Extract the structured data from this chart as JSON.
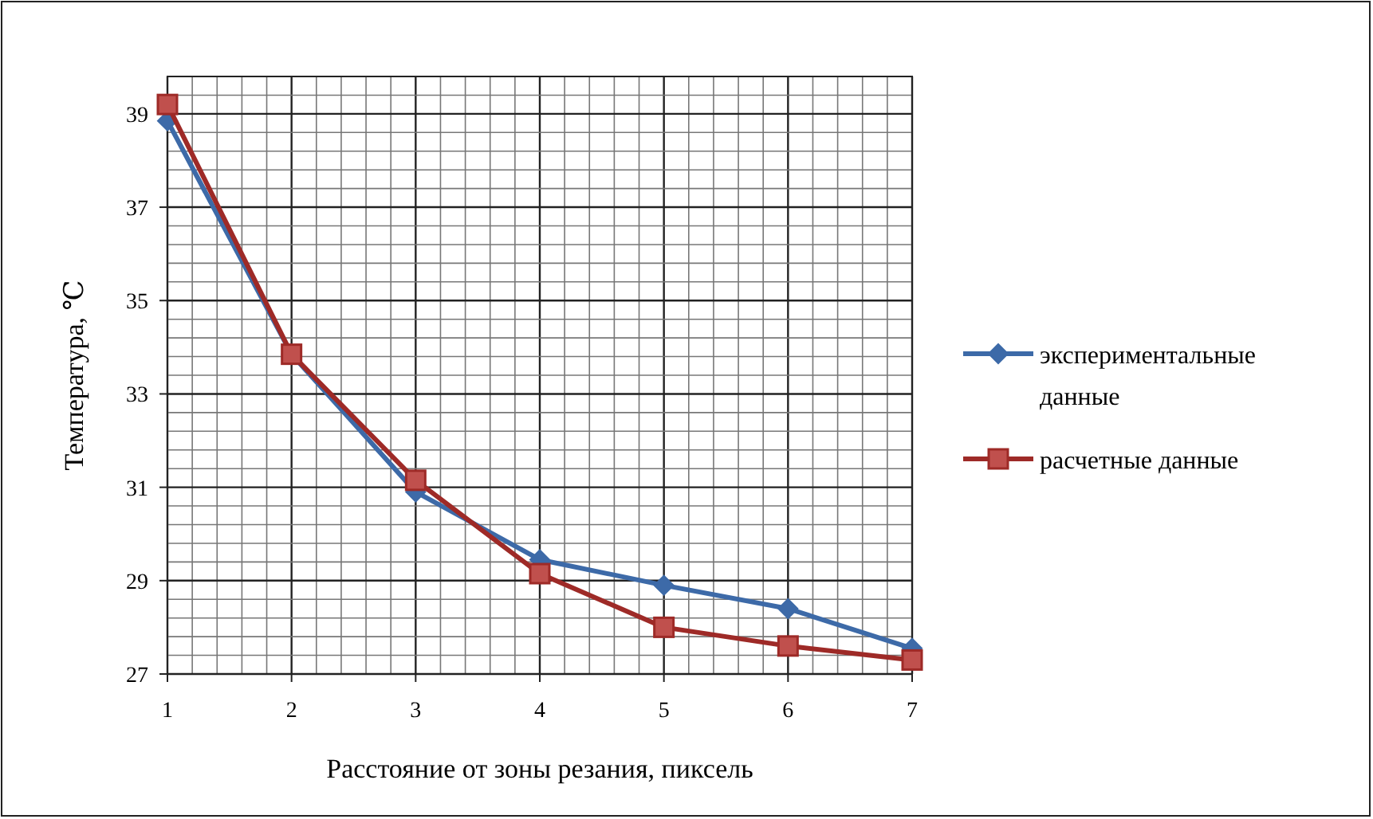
{
  "chart_data": {
    "type": "line",
    "xlabel": "Расстояние от зоны резания, пиксель",
    "ylabel": "Температура, ℃",
    "x": [
      1,
      2,
      3,
      4,
      5,
      6,
      7
    ],
    "series": [
      {
        "name": "экспериментальные данные",
        "color": "#3d6aa8",
        "marker": "diamond",
        "values": [
          38.85,
          33.85,
          30.9,
          29.45,
          28.9,
          28.4,
          27.55
        ]
      },
      {
        "name": "расчетные данные",
        "color": "#9e2a27",
        "marker": "square",
        "values": [
          39.2,
          33.85,
          31.15,
          29.15,
          28.0,
          27.6,
          27.3
        ]
      }
    ],
    "xlim": [
      1,
      7
    ],
    "ylim": [
      27,
      39.8
    ],
    "xticks": [
      1,
      {
        "value": 1.2,
        "label": null
      },
      {
        "value": 1.4,
        "label": null
      },
      {
        "value": 1.6,
        "label": null
      },
      {
        "value": 1.8,
        "label": null
      },
      2,
      {
        "value": 2.2,
        "label": null
      },
      {
        "value": 2.4,
        "label": null
      },
      {
        "value": 2.6,
        "label": null
      },
      {
        "value": 2.8,
        "label": null
      },
      3,
      {
        "value": 3.2,
        "label": null
      },
      {
        "value": 3.4,
        "label": null
      },
      {
        "value": 3.6,
        "label": null
      },
      {
        "value": 3.8,
        "label": null
      },
      4,
      {
        "value": 4.2,
        "label": null
      },
      {
        "value": 4.4,
        "label": null
      },
      {
        "value": 4.6,
        "label": null
      },
      {
        "value": 4.8,
        "label": null
      },
      5,
      {
        "value": 5.2,
        "label": null
      },
      {
        "value": 5.4,
        "label": null
      },
      {
        "value": 5.6,
        "label": null
      },
      {
        "value": 5.8,
        "label": null
      },
      6,
      {
        "value": 6.2,
        "label": null
      },
      {
        "value": 6.4,
        "label": null
      },
      {
        "value": 6.6,
        "label": null
      },
      {
        "value": 6.8,
        "label": null
      },
      7
    ],
    "yticks": [
      27,
      {
        "value": 27.4,
        "label": null
      },
      {
        "value": 27.8,
        "label": null
      },
      {
        "value": 28.2,
        "label": null
      },
      {
        "value": 28.6,
        "label": null
      },
      29,
      {
        "value": 29.4,
        "label": null
      },
      {
        "value": 29.8,
        "label": null
      },
      {
        "value": 30.2,
        "label": null
      },
      {
        "value": 30.6,
        "label": null
      },
      31,
      {
        "value": 31.4,
        "label": null
      },
      {
        "value": 31.8,
        "label": null
      },
      {
        "value": 32.2,
        "label": null
      },
      {
        "value": 32.6,
        "label": null
      },
      33,
      {
        "value": 33.4,
        "label": null
      },
      {
        "value": 33.8,
        "label": null
      },
      {
        "value": 34.2,
        "label": null
      },
      {
        "value": 34.6,
        "label": null
      },
      35,
      {
        "value": 35.4,
        "label": null
      },
      {
        "value": 35.8,
        "label": null
      },
      {
        "value": 36.2,
        "label": null
      },
      {
        "value": 36.6,
        "label": null
      },
      37,
      {
        "value": 37.4,
        "label": null
      },
      {
        "value": 37.8,
        "label": null
      },
      {
        "value": 38.2,
        "label": null
      },
      {
        "value": 38.6,
        "label": null
      },
      39,
      {
        "value": 39.4,
        "label": null
      },
      {
        "value": 39.8,
        "label": null
      }
    ],
    "grid": true,
    "legend": "right",
    "line_style": "solid"
  }
}
